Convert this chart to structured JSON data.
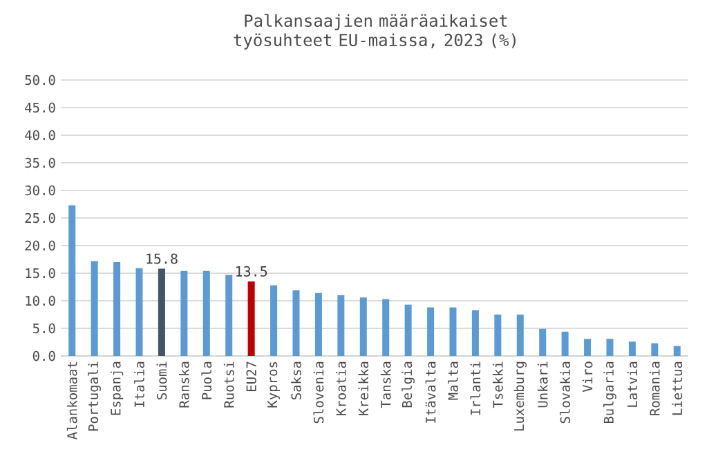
{
  "chart_data": {
    "type": "bar",
    "title": "Palkansaajien määräaikaiset työsuhteet EU-maissa, 2023 (%)",
    "categories": [
      "Alankomaat",
      "Portugali",
      "Espanja",
      "Italia",
      "Suomi",
      "Ranska",
      "Puola",
      "Ruotsi",
      "EU27",
      "Kypros",
      "Saksa",
      "Slovenia",
      "Kroatia",
      "Kreikka",
      "Tanska",
      "Belgia",
      "Itävalta",
      "Malta",
      "Irlanti",
      "Tsekki",
      "Luxemburg",
      "Unkari",
      "Slovakia",
      "Viro",
      "Bulgaria",
      "Latvia",
      "Romania",
      "Liettua"
    ],
    "values": [
      27.3,
      17.2,
      17.0,
      15.9,
      15.8,
      15.4,
      15.4,
      14.7,
      13.5,
      12.8,
      11.9,
      11.4,
      11.0,
      10.6,
      10.3,
      9.3,
      8.8,
      8.8,
      8.3,
      7.5,
      7.5,
      4.9,
      4.4,
      3.1,
      3.1,
      2.6,
      2.3,
      1.8
    ],
    "colors": [
      "#5b9bd5",
      "#5b9bd5",
      "#5b9bd5",
      "#5b9bd5",
      "#44546a",
      "#5b9bd5",
      "#5b9bd5",
      "#5b9bd5",
      "#c00000",
      "#5b9bd5",
      "#5b9bd5",
      "#5b9bd5",
      "#5b9bd5",
      "#5b9bd5",
      "#5b9bd5",
      "#5b9bd5",
      "#5b9bd5",
      "#5b9bd5",
      "#5b9bd5",
      "#5b9bd5",
      "#5b9bd5",
      "#5b9bd5",
      "#5b9bd5",
      "#5b9bd5",
      "#5b9bd5",
      "#5b9bd5",
      "#5b9bd5",
      "#5b9bd5"
    ],
    "value_labels": [
      null,
      null,
      null,
      null,
      "15.8",
      null,
      null,
      null,
      "13.5",
      null,
      null,
      null,
      null,
      null,
      null,
      null,
      null,
      null,
      null,
      null,
      null,
      null,
      null,
      null,
      null,
      null,
      null,
      null
    ],
    "ylim": [
      0,
      50
    ],
    "yticks": [
      {
        "value": 0,
        "label": "0.0"
      },
      {
        "value": 5,
        "label": "5.0"
      },
      {
        "value": 10,
        "label": "10.0"
      },
      {
        "value": 15,
        "label": "15.0"
      },
      {
        "value": 20,
        "label": "20.0"
      },
      {
        "value": 25,
        "label": "25.0"
      },
      {
        "value": 30,
        "label": "30.0"
      },
      {
        "value": 35,
        "label": "35.0"
      },
      {
        "value": 40,
        "label": "40.0"
      },
      {
        "value": 45,
        "label": "45.0"
      },
      {
        "value": 50,
        "label": "50.0"
      }
    ],
    "grid": "y"
  }
}
